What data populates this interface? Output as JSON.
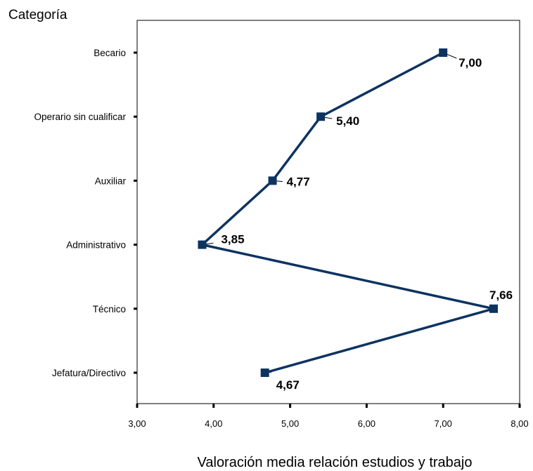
{
  "chart_data": {
    "type": "line",
    "orientation": "horizontal",
    "ylabel": "Categoría",
    "xlabel": "Valoración media relación estudios y trabajo",
    "categories": [
      "Becario",
      "Operario sin cualificar",
      "Auxiliar",
      "Administrativo",
      "Técnico",
      "Jefatura/Directivo"
    ],
    "values": [
      7.0,
      5.4,
      4.77,
      3.85,
      7.66,
      4.67
    ],
    "value_labels": [
      "7,00",
      "5,40",
      "4,77",
      "3,85",
      "7,66",
      "4,67"
    ],
    "xlim": [
      3,
      8
    ],
    "x_ticks": [
      3,
      4,
      5,
      6,
      7,
      8
    ],
    "x_tick_labels": [
      "3,00",
      "4,00",
      "5,00",
      "6,00",
      "7,00",
      "8,00"
    ],
    "grid": false,
    "colors": {
      "line": "#0d3361",
      "marker": "#0d3361"
    }
  }
}
